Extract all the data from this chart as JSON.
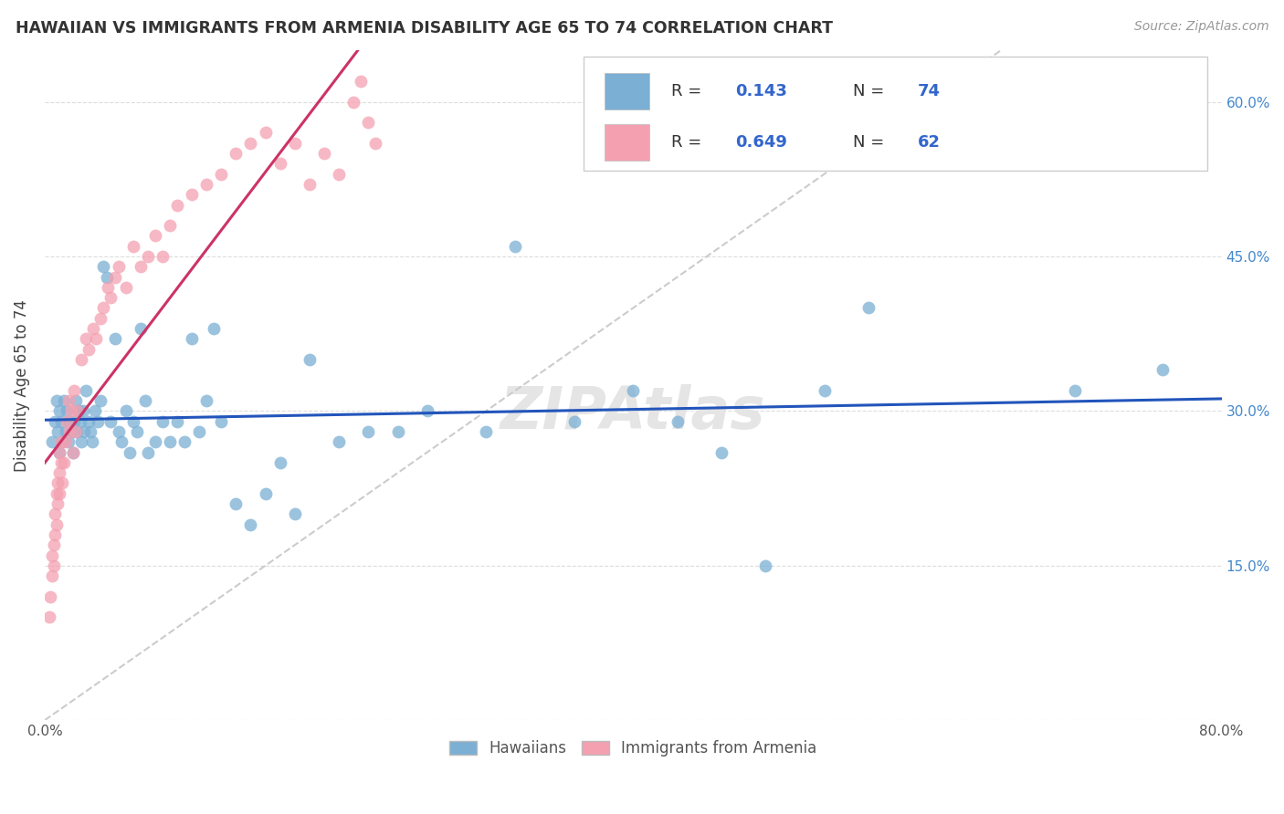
{
  "title": "HAWAIIAN VS IMMIGRANTS FROM ARMENIA DISABILITY AGE 65 TO 74 CORRELATION CHART",
  "source": "Source: ZipAtlas.com",
  "ylabel": "Disability Age 65 to 74",
  "xlim": [
    0.0,
    0.8
  ],
  "ylim": [
    0.0,
    0.65
  ],
  "color_blue": "#7BAFD4",
  "color_pink": "#F4A0B0",
  "trendline_blue": "#2255BB",
  "trendline_pink": "#CC3366",
  "trendline_gray": "#CCCCCC",
  "background": "#FFFFFF",
  "watermark_color": "#E5E5E5",
  "hawaiians_x": [
    0.005,
    0.007,
    0.008,
    0.009,
    0.01,
    0.01,
    0.011,
    0.012,
    0.013,
    0.014,
    0.015,
    0.016,
    0.017,
    0.018,
    0.019,
    0.02,
    0.021,
    0.022,
    0.023,
    0.024,
    0.025,
    0.026,
    0.027,
    0.028,
    0.03,
    0.031,
    0.032,
    0.034,
    0.036,
    0.038,
    0.04,
    0.042,
    0.045,
    0.048,
    0.05,
    0.052,
    0.055,
    0.058,
    0.06,
    0.063,
    0.065,
    0.068,
    0.07,
    0.075,
    0.08,
    0.085,
    0.09,
    0.095,
    0.1,
    0.105,
    0.11,
    0.115,
    0.12,
    0.13,
    0.14,
    0.15,
    0.16,
    0.17,
    0.18,
    0.2,
    0.22,
    0.24,
    0.26,
    0.3,
    0.32,
    0.36,
    0.4,
    0.43,
    0.46,
    0.49,
    0.53,
    0.56,
    0.7,
    0.76
  ],
  "hawaiians_y": [
    0.27,
    0.29,
    0.31,
    0.28,
    0.26,
    0.3,
    0.29,
    0.27,
    0.31,
    0.28,
    0.3,
    0.27,
    0.29,
    0.28,
    0.26,
    0.29,
    0.31,
    0.28,
    0.3,
    0.29,
    0.27,
    0.3,
    0.28,
    0.32,
    0.29,
    0.28,
    0.27,
    0.3,
    0.29,
    0.31,
    0.44,
    0.43,
    0.29,
    0.37,
    0.28,
    0.27,
    0.3,
    0.26,
    0.29,
    0.28,
    0.38,
    0.31,
    0.26,
    0.27,
    0.29,
    0.27,
    0.29,
    0.27,
    0.37,
    0.28,
    0.31,
    0.38,
    0.29,
    0.21,
    0.19,
    0.22,
    0.25,
    0.2,
    0.35,
    0.27,
    0.28,
    0.28,
    0.3,
    0.28,
    0.46,
    0.29,
    0.32,
    0.29,
    0.26,
    0.15,
    0.32,
    0.4,
    0.32,
    0.34
  ],
  "armenia_x": [
    0.003,
    0.004,
    0.005,
    0.005,
    0.006,
    0.006,
    0.007,
    0.007,
    0.008,
    0.008,
    0.009,
    0.009,
    0.01,
    0.01,
    0.01,
    0.011,
    0.011,
    0.012,
    0.013,
    0.014,
    0.015,
    0.016,
    0.017,
    0.018,
    0.019,
    0.02,
    0.021,
    0.022,
    0.025,
    0.028,
    0.03,
    0.033,
    0.035,
    0.038,
    0.04,
    0.043,
    0.045,
    0.048,
    0.05,
    0.055,
    0.06,
    0.065,
    0.07,
    0.075,
    0.08,
    0.085,
    0.09,
    0.1,
    0.11,
    0.12,
    0.13,
    0.14,
    0.15,
    0.16,
    0.17,
    0.18,
    0.19,
    0.2,
    0.21,
    0.215,
    0.22,
    0.225
  ],
  "armenia_y": [
    0.1,
    0.12,
    0.14,
    0.16,
    0.15,
    0.17,
    0.18,
    0.2,
    0.19,
    0.22,
    0.21,
    0.23,
    0.22,
    0.24,
    0.26,
    0.25,
    0.27,
    0.23,
    0.25,
    0.27,
    0.29,
    0.31,
    0.28,
    0.3,
    0.26,
    0.32,
    0.28,
    0.3,
    0.35,
    0.37,
    0.36,
    0.38,
    0.37,
    0.39,
    0.4,
    0.42,
    0.41,
    0.43,
    0.44,
    0.42,
    0.46,
    0.44,
    0.45,
    0.47,
    0.45,
    0.48,
    0.5,
    0.51,
    0.52,
    0.53,
    0.55,
    0.56,
    0.57,
    0.54,
    0.56,
    0.52,
    0.55,
    0.53,
    0.6,
    0.62,
    0.58,
    0.56
  ]
}
